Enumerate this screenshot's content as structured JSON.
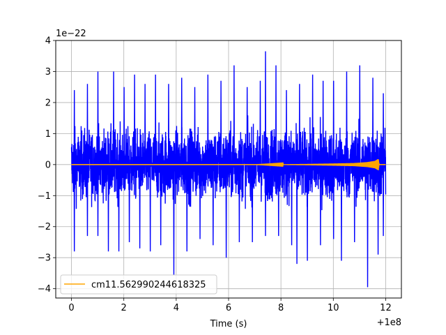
{
  "chart_data": {
    "type": "line",
    "xlabel": "Time (s)",
    "ylabel": "",
    "x_offset_label": "+1e8",
    "y_multiplier_label": "1e−22",
    "xlim": [
      -0.6,
      12.6
    ],
    "ylim": [
      -4.3,
      4.0
    ],
    "x_ticks": [
      0,
      2,
      4,
      6,
      8,
      10,
      12
    ],
    "x_tick_labels": [
      "0",
      "2",
      "4",
      "6",
      "8",
      "10",
      "12"
    ],
    "y_ticks": [
      -4,
      -3,
      -2,
      -1,
      0,
      1,
      2,
      3,
      4
    ],
    "y_tick_labels": [
      "−4",
      "−3",
      "−2",
      "−1",
      "0",
      "1",
      "2",
      "3",
      "4"
    ],
    "grid": true,
    "legend_position": "lower-left",
    "series": [
      {
        "kind": "noise",
        "color": "#0000ff",
        "x_range": [
          0,
          12
        ],
        "envelope": {
          "positive_peaks": [
            [
              0.1,
              2.4
            ],
            [
              0.6,
              2.6
            ],
            [
              1.0,
              3.0
            ],
            [
              1.6,
              3.0
            ],
            [
              2.0,
              2.5
            ],
            [
              2.4,
              2.9
            ],
            [
              2.8,
              2.6
            ],
            [
              3.2,
              2.9
            ],
            [
              3.7,
              2.6
            ],
            [
              4.2,
              2.8
            ],
            [
              4.7,
              2.5
            ],
            [
              5.2,
              2.9
            ],
            [
              5.7,
              2.7
            ],
            [
              6.2,
              3.2
            ],
            [
              6.7,
              2.5
            ],
            [
              7.2,
              2.7
            ],
            [
              7.4,
              3.65
            ],
            [
              7.8,
              3.2
            ],
            [
              8.2,
              2.4
            ],
            [
              8.7,
              2.6
            ],
            [
              9.2,
              2.9
            ],
            [
              9.6,
              2.7
            ],
            [
              10.0,
              2.7
            ],
            [
              10.5,
              3.0
            ],
            [
              11.0,
              3.2
            ],
            [
              11.5,
              2.8
            ],
            [
              11.9,
              2.3
            ]
          ],
          "negative_peaks": [
            [
              0.1,
              -2.8
            ],
            [
              0.6,
              -2.3
            ],
            [
              1.0,
              -2.3
            ],
            [
              1.4,
              -2.8
            ],
            [
              1.8,
              -2.8
            ],
            [
              2.2,
              -2.5
            ],
            [
              2.6,
              -2.7
            ],
            [
              3.0,
              -2.8
            ],
            [
              3.4,
              -2.6
            ],
            [
              3.9,
              -3.55
            ],
            [
              4.4,
              -2.8
            ],
            [
              4.9,
              -2.4
            ],
            [
              5.4,
              -2.6
            ],
            [
              5.9,
              -3.0
            ],
            [
              6.4,
              -2.5
            ],
            [
              6.9,
              -2.5
            ],
            [
              7.4,
              -2.3
            ],
            [
              7.9,
              -2.3
            ],
            [
              8.4,
              -2.6
            ],
            [
              8.6,
              -3.2
            ],
            [
              9.0,
              -3.1
            ],
            [
              9.5,
              -2.6
            ],
            [
              10.0,
              -2.4
            ],
            [
              10.3,
              -3.1
            ],
            [
              10.8,
              -2.5
            ],
            [
              11.3,
              -3.95
            ],
            [
              11.7,
              -2.9
            ],
            [
              11.9,
              -2.3
            ]
          ]
        },
        "typical_band": [
          -1.8,
          1.9
        ]
      },
      {
        "name": "cm11.562990244618325",
        "kind": "waveform",
        "color": "#ffa500",
        "x_range": [
          0,
          12
        ],
        "points": [
          [
            0,
            0
          ],
          [
            7.0,
            0
          ],
          [
            8.0,
            0.01
          ],
          [
            9.0,
            0.02
          ],
          [
            10.0,
            0.035
          ],
          [
            10.8,
            0.05
          ],
          [
            11.3,
            0.08
          ],
          [
            11.6,
            0.12
          ],
          [
            11.72,
            0.18
          ],
          [
            11.75,
            0.0
          ]
        ]
      }
    ]
  }
}
